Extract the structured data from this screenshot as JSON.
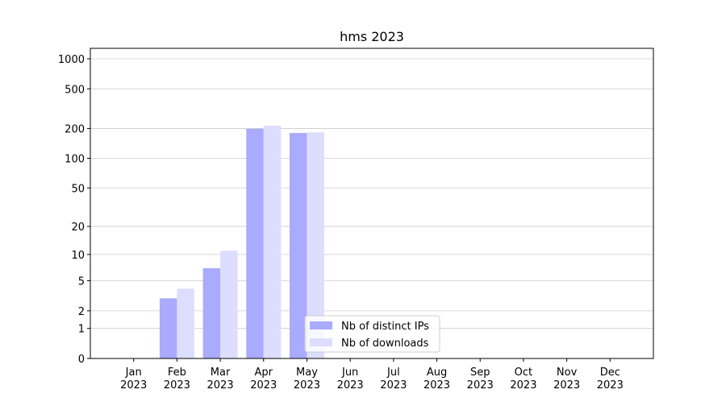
{
  "chart_data": {
    "type": "bar",
    "title": "hms 2023",
    "categories": [
      "Jan 2023",
      "Feb 2023",
      "Mar 2023",
      "Apr 2023",
      "May 2023",
      "Jun 2023",
      "Jul 2023",
      "Aug 2023",
      "Sep 2023",
      "Oct 2023",
      "Nov 2023",
      "Dec 2023"
    ],
    "series": [
      {
        "name": "Nb of distinct IPs",
        "color": "#aaaaff",
        "values": [
          0,
          3,
          7,
          198,
          180,
          0,
          0,
          0,
          0,
          0,
          0,
          0
        ]
      },
      {
        "name": "Nb of downloads",
        "color": "#ddddff",
        "values": [
          0,
          4,
          11,
          213,
          183,
          0,
          0,
          0,
          0,
          0,
          0,
          0
        ]
      }
    ],
    "yscale": "symlog",
    "ylim": [
      0,
      1273
    ],
    "yticks": [
      0,
      1,
      2,
      5,
      10,
      20,
      50,
      100,
      200,
      500,
      1000
    ],
    "grid": true,
    "legend": "lower center"
  }
}
